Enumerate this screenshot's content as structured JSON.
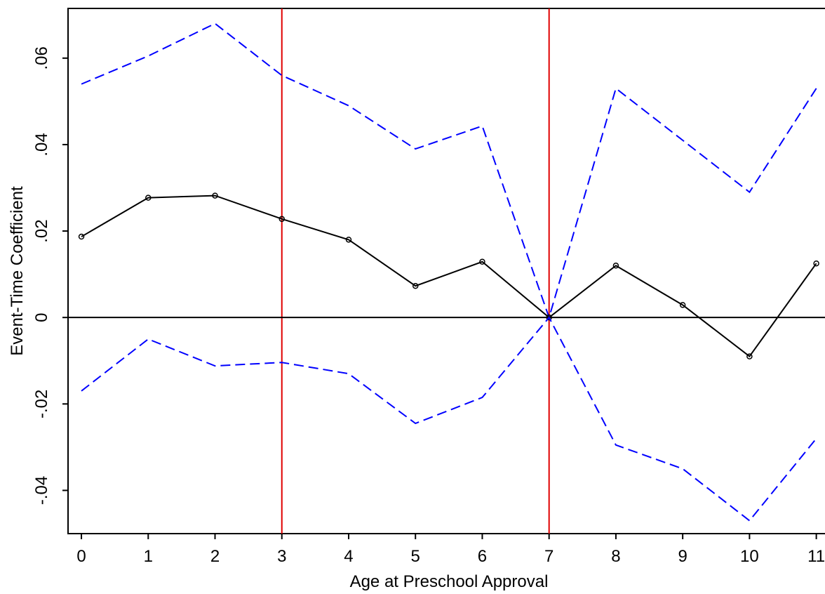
{
  "chart_data": {
    "type": "line",
    "x_label": "Age at Preschool Approval",
    "y_label": "Event-Time Coefficient",
    "x": [
      0,
      1,
      2,
      3,
      4,
      5,
      6,
      7,
      8,
      9,
      10,
      11
    ],
    "series": [
      {
        "color": "#0000ff",
        "dashed": true,
        "markers": false,
        "values": [
          0.054,
          0.0605,
          0.068,
          0.056,
          0.049,
          0.039,
          0.0443,
          0,
          0.053,
          0.041,
          0.029,
          0.053
        ]
      },
      {
        "color": "#000000",
        "dashed": false,
        "markers": true,
        "values": [
          0.0187,
          0.0277,
          0.0282,
          0.0228,
          0.018,
          0.0073,
          0.0129,
          0,
          0.012,
          0.0029,
          -0.009,
          0.0125
        ]
      },
      {
        "color": "#0000ff",
        "dashed": true,
        "markers": false,
        "values": [
          -0.017,
          -0.005,
          -0.0112,
          -0.0104,
          -0.013,
          -0.0245,
          -0.0185,
          0,
          -0.0295,
          -0.035,
          -0.047,
          -0.028
        ]
      }
    ],
    "vlines": [
      3,
      7
    ],
    "vline_color": "#e00000",
    "hline": 0,
    "hline_color": "#000000",
    "xlim": [
      -0.2,
      11.13
    ],
    "ylim": [
      -0.05,
      0.0715
    ],
    "xticks": [
      0,
      1,
      2,
      3,
      4,
      5,
      6,
      7,
      8,
      9,
      10,
      11
    ],
    "yticks": [
      {
        "value": -0.04,
        "label": "-.04"
      },
      {
        "value": -0.02,
        "label": "-.02"
      },
      0,
      {
        "value": 0.02,
        "label": ".02"
      },
      {
        "value": 0.04,
        "label": ".04"
      },
      {
        "value": 0.06,
        "label": ".06"
      }
    ]
  }
}
